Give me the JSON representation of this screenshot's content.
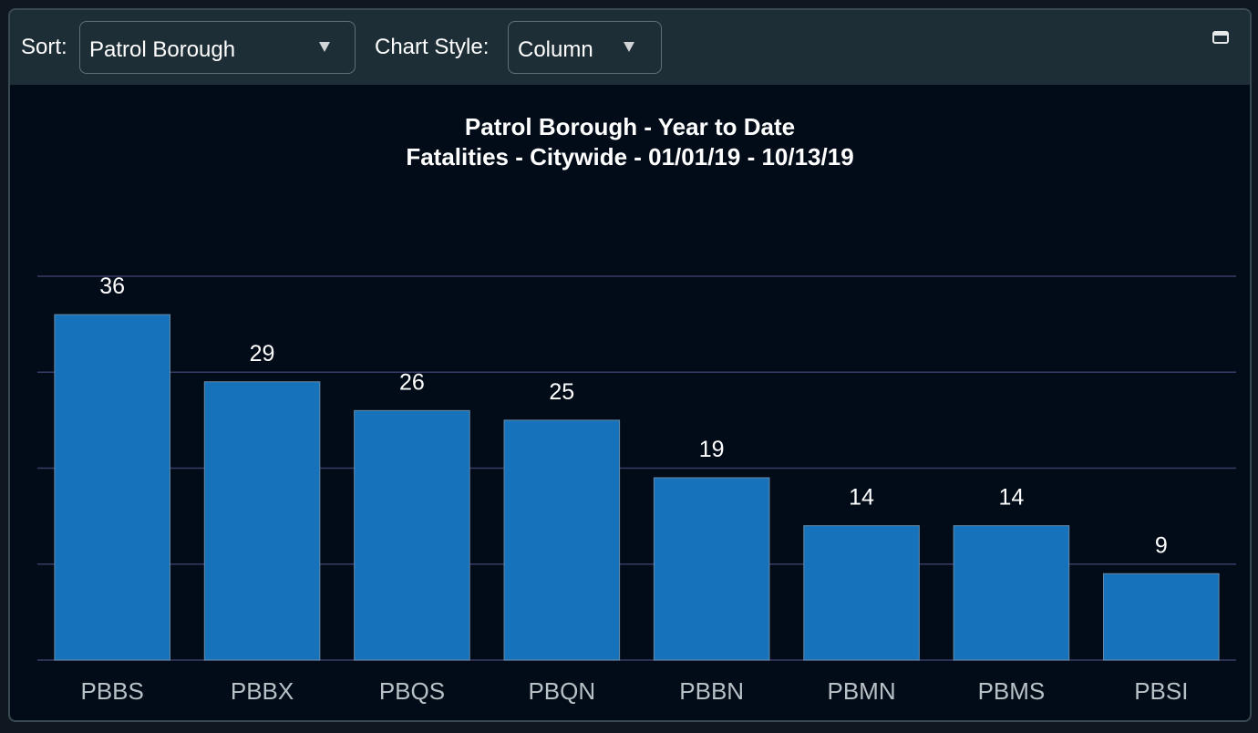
{
  "toolbar": {
    "sort_label": "Sort:",
    "sort_value": "Patrol Borough",
    "style_label": "Chart Style:",
    "style_value": "Column"
  },
  "colors": {
    "bar": "#1572bb",
    "bar_border": "#6a8aa6",
    "gridline": "#3a3a66",
    "axis_label": "#b9c0c6",
    "data_label": "#ffffff"
  },
  "chart_data": {
    "type": "bar",
    "title": "Patrol Borough - Year to Date",
    "subtitle": "Fatalities - Citywide - 01/01/19 - 10/13/19",
    "categories": [
      "PBBS",
      "PBBX",
      "PBQS",
      "PBQN",
      "PBBN",
      "PBMN",
      "PBMS",
      "PBSI"
    ],
    "values": [
      36,
      29,
      26,
      25,
      19,
      14,
      14,
      9
    ],
    "ylim": [
      0,
      40
    ],
    "ytick_step": 10,
    "grid": true,
    "legend": "none",
    "data_labels": true
  }
}
